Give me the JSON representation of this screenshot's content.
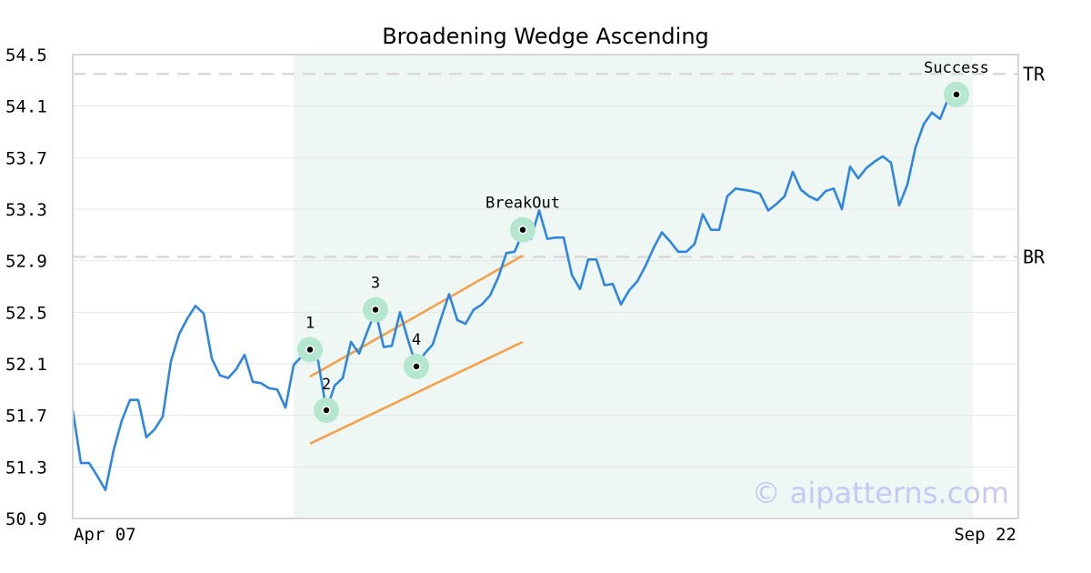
{
  "chart_data": {
    "type": "line",
    "title": "Broadening Wedge Ascending",
    "xlabel": "",
    "ylabel": "",
    "ylim": [
      50.9,
      54.5
    ],
    "y_ticks": [
      "50.9",
      "51.3",
      "51.7",
      "52.1",
      "52.5",
      "52.9",
      "53.3",
      "53.7",
      "54.1",
      "54.5"
    ],
    "x_tick_labels": [
      "Apr 07",
      "Sep 22"
    ],
    "grid": "horizontal",
    "series": [
      {
        "values": [
          51.74,
          51.33,
          51.33,
          51.23,
          51.12,
          51.43,
          51.66,
          51.82,
          51.82,
          51.53,
          51.59,
          51.69,
          52.12,
          52.33,
          52.45,
          52.55,
          52.49,
          52.14,
          52.01,
          51.99,
          52.06,
          52.17,
          51.96,
          51.95,
          51.91,
          51.9,
          51.76,
          52.09,
          52.16,
          52.22,
          52.12,
          51.74,
          51.93,
          51.99,
          52.27,
          52.18,
          52.35,
          52.51,
          52.23,
          52.24,
          52.5,
          52.28,
          52.08,
          52.18,
          52.25,
          52.45,
          52.64,
          52.44,
          52.41,
          52.52,
          52.56,
          52.63,
          52.77,
          52.96,
          52.97,
          53.12,
          53.07,
          53.29,
          53.07,
          53.08,
          53.08,
          52.79,
          52.68,
          52.91,
          52.91,
          52.71,
          52.72,
          52.56,
          52.67,
          52.74,
          52.86,
          53.0,
          53.12,
          53.05,
          52.97,
          52.97,
          53.03,
          53.26,
          53.14,
          53.14,
          53.4,
          53.46,
          53.45,
          53.44,
          53.42,
          53.29,
          53.34,
          53.4,
          53.59,
          53.45,
          53.4,
          53.37,
          53.44,
          53.46,
          53.3,
          53.63,
          53.54,
          53.62,
          53.67,
          53.71,
          53.66,
          53.33,
          53.49,
          53.78,
          53.96,
          54.05,
          54.0,
          54.16,
          54.18,
          54.18
        ]
      }
    ],
    "wedge_lines": [
      {
        "from": [
          29,
          52.0
        ],
        "to": [
          55,
          52.94
        ]
      },
      {
        "from": [
          29,
          51.48
        ],
        "to": [
          55,
          52.27
        ]
      }
    ],
    "points": [
      {
        "label": "1",
        "index": 29,
        "value": 52.21
      },
      {
        "label": "2",
        "index": 31,
        "value": 51.74
      },
      {
        "label": "3",
        "index": 37,
        "value": 52.52
      },
      {
        "label": "4",
        "index": 42,
        "value": 52.08
      },
      {
        "label": "BreakOut",
        "index": 55,
        "value": 53.14
      },
      {
        "label": "Success",
        "index": 108,
        "value": 54.19
      }
    ],
    "levels": [
      {
        "label": "TR",
        "value": 54.35
      },
      {
        "label": "BR",
        "value": 52.93
      }
    ],
    "pattern_range": [
      27,
      110
    ],
    "colors": {
      "line": "#2e86de",
      "wedge": "#f5a04a",
      "marker_halo": "#b5e6cf",
      "pattern_band": "#eef7f3",
      "level": "#d9d9d9"
    }
  },
  "watermark": "© aipatterns.com"
}
